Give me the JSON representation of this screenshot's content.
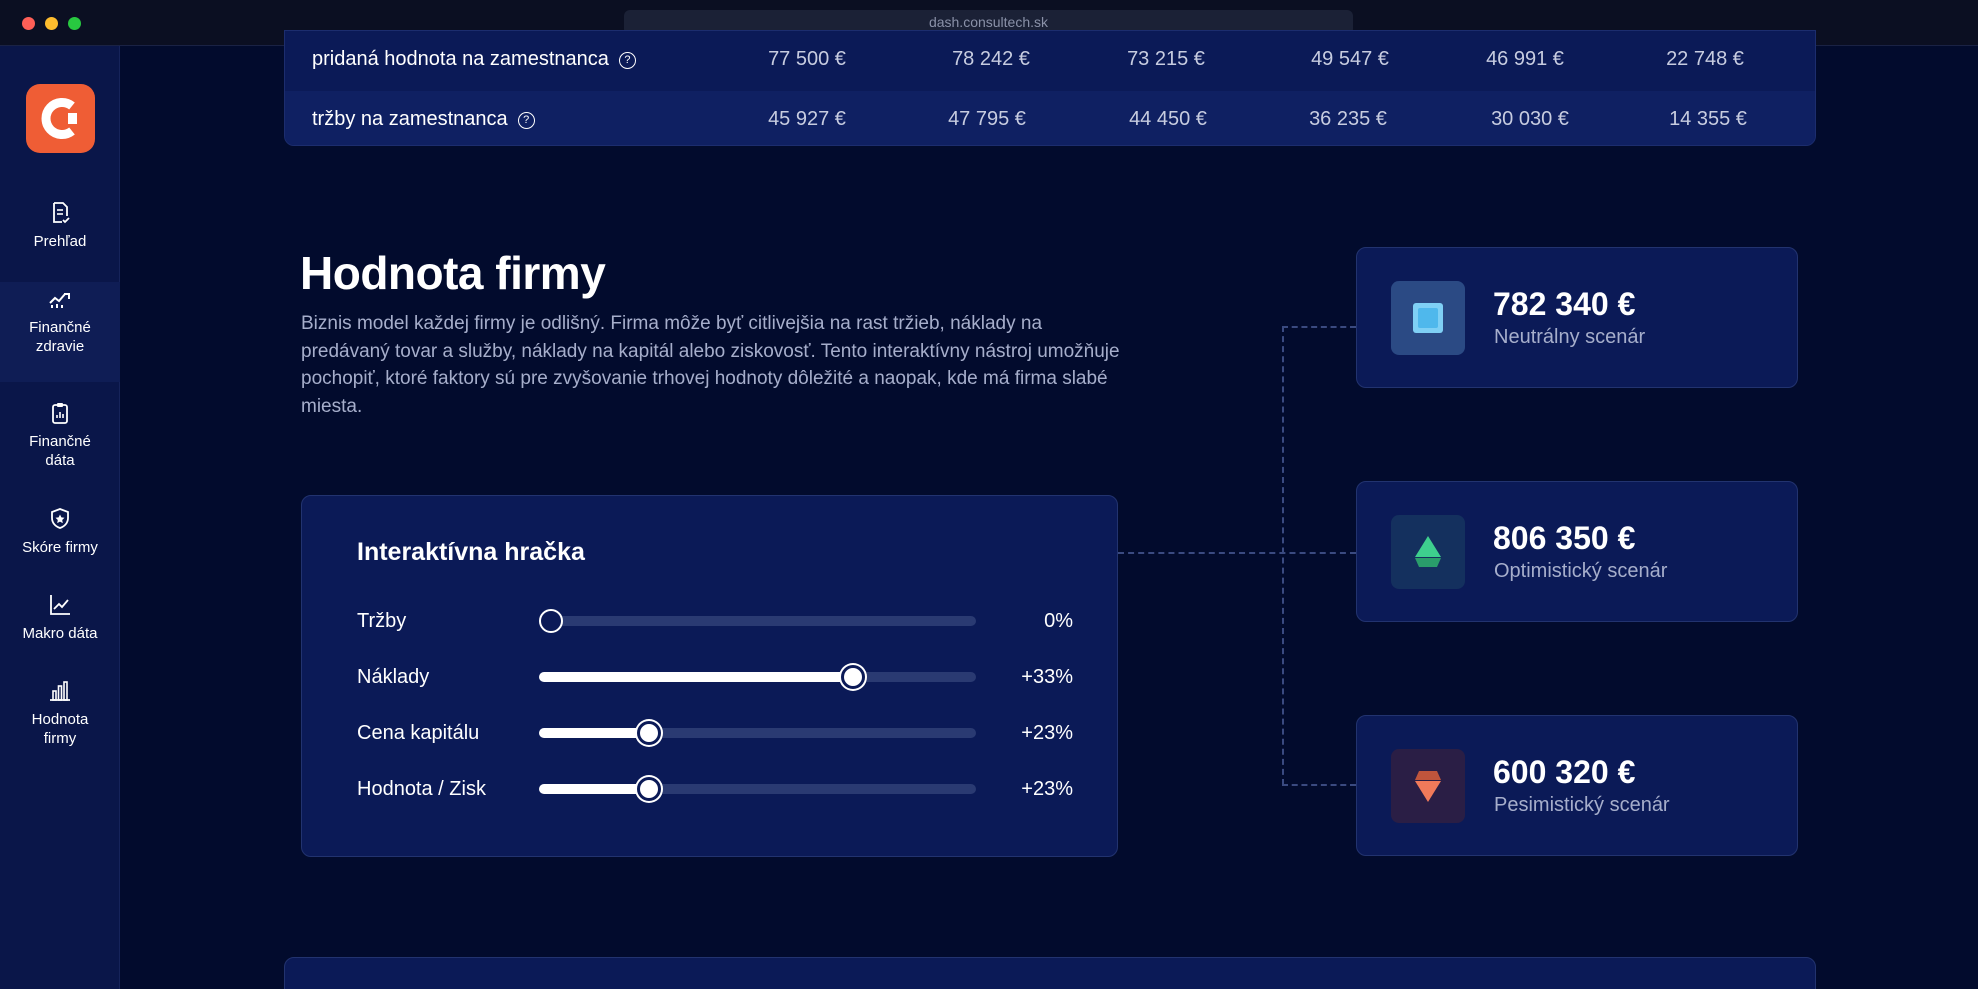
{
  "browser": {
    "url": "dash.consultech.sk"
  },
  "sidebar": {
    "items": [
      {
        "label": "Prehľad",
        "icon": "document-check-icon"
      },
      {
        "label": "Finančné zdravie",
        "icon": "trend-chart-icon"
      },
      {
        "label": "Finančné dáta",
        "icon": "clipboard-chart-icon"
      },
      {
        "label": "Skóre firmy",
        "icon": "shield-star-icon"
      },
      {
        "label": "Makro dáta",
        "icon": "line-chart-icon"
      },
      {
        "label": "Hodnota firmy",
        "icon": "bar-chart-icon"
      }
    ],
    "active_index": 1
  },
  "table": {
    "rows": [
      {
        "label": "pridaná hodnota na zamestnanca",
        "cells": [
          "77 500 €",
          "78 242 €",
          "73 215 €",
          "49 547 €",
          "46 991 €",
          "22 748 €"
        ]
      },
      {
        "label": "tržby na zamestnanca",
        "cells": [
          "45 927 €",
          "47 795 €",
          "44 450 €",
          "36 235 €",
          "30 030 €",
          "14 355 €"
        ]
      }
    ]
  },
  "section": {
    "title": "Hodnota firmy",
    "description": "Biznis model každej firmy je odlišný. Firma môže byť citlivejšia na rast tržieb, náklady na predávaný tovar a služby, náklady na kapitál alebo ziskovosť. Tento interaktívny nástroj umožňuje pochopiť, ktoré faktory sú pre zvyšovanie trhovej hodnoty dôležité a naopak, kde má firma slabé miesta."
  },
  "toy": {
    "title": "Interaktívna hračka",
    "sliders": [
      {
        "label": "Tržby",
        "value_text": "0%",
        "level": 0.027
      },
      {
        "label": "Náklady",
        "value_text": "+33%",
        "level": 0.718
      },
      {
        "label": "Cena kapitálu",
        "value_text": "+23%",
        "level": 0.251
      },
      {
        "label": "Hodnota / Zisk",
        "value_text": "+23%",
        "level": 0.251
      }
    ]
  },
  "scenarios": [
    {
      "value": "782 340 €",
      "label": "Neutrálny scenár",
      "icon": "square-icon",
      "color": "#4fb8ec"
    },
    {
      "value": "806 350 €",
      "label": "Optimistický scenár",
      "icon": "arrow-up-icon",
      "color": "#3ecf8e"
    },
    {
      "value": "600 320 €",
      "label": "Pesimistický scenár",
      "icon": "arrow-down-icon",
      "color": "#f07a5a"
    }
  ],
  "colors": {
    "brand": "#ef5d35",
    "background": "#020b2d",
    "card": "#0b1a57"
  }
}
